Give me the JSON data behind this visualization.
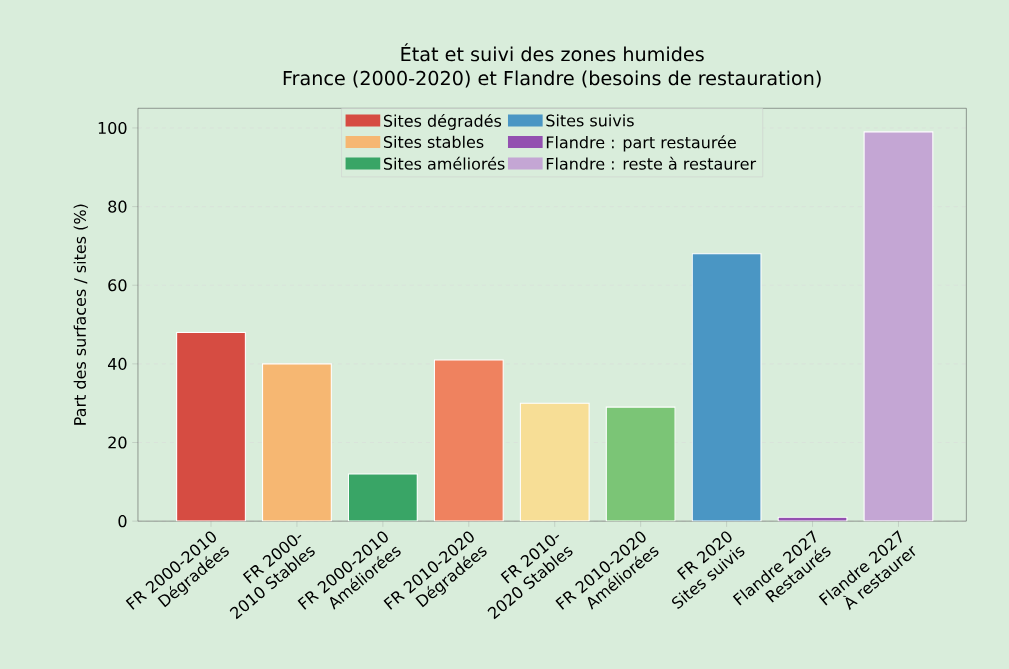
{
  "chart_data": {
    "type": "bar",
    "title": "État et suivi des zones humides",
    "subtitle": "France (2000-2020) et Flandre (besoins de restauration)",
    "ylabel": "Part des surfaces / sites (%)",
    "categories": [
      "FR 2000-2010 Dégradées",
      "FR 2000-2010 Stables",
      "FR 2000-2010 Améliorées",
      "FR 2010-2020 Dégradées",
      "FR 2010-2020 Stables",
      "FR 2010-2020 Améliorées",
      "FR 2020 Sites suivis",
      "Flandre 2027 Restaurés",
      "Flandre 2027 À restaurer"
    ],
    "series": [
      {
        "name": "Sites dégradés",
        "color": "#d64c42",
        "values": [
          48,
          null,
          null,
          41,
          null,
          null,
          null,
          null,
          null
        ],
        "colors": [
          "#d64c42",
          null,
          null,
          "#ef825f",
          null,
          null,
          null,
          null,
          null
        ]
      },
      {
        "name": "Sites stables",
        "color": "#f6b772",
        "values": [
          null,
          40,
          null,
          null,
          30,
          null,
          null,
          null,
          null
        ],
        "colors": [
          null,
          "#f6b772",
          null,
          null,
          "#f7de96",
          null,
          null,
          null,
          null
        ]
      },
      {
        "name": "Sites améliorés",
        "color": "#39a566",
        "values": [
          null,
          null,
          12,
          null,
          null,
          29,
          null,
          null,
          null
        ],
        "colors": [
          null,
          null,
          "#39a566",
          null,
          null,
          "#7bc576",
          null,
          null,
          null
        ]
      },
      {
        "name": "Sites suivis",
        "color": "#4a96c4",
        "values": [
          null,
          null,
          null,
          null,
          null,
          null,
          68,
          null,
          null
        ],
        "colors": [
          null,
          null,
          null,
          null,
          null,
          null,
          "#4a96c4",
          null,
          null
        ]
      },
      {
        "name": "Flandre : part restaurée",
        "color": "#9350b0",
        "values": [
          null,
          null,
          null,
          null,
          null,
          null,
          null,
          1,
          null
        ]
      },
      {
        "name": "Flandre : reste à restaurer",
        "color": "#c4a6d4",
        "values": [
          null,
          null,
          null,
          null,
          null,
          null,
          null,
          null,
          99
        ]
      }
    ],
    "ylim": [
      0,
      105
    ],
    "yticks": [
      0,
      20,
      40,
      60,
      80,
      100
    ],
    "grid": "y",
    "legend": "top"
  }
}
